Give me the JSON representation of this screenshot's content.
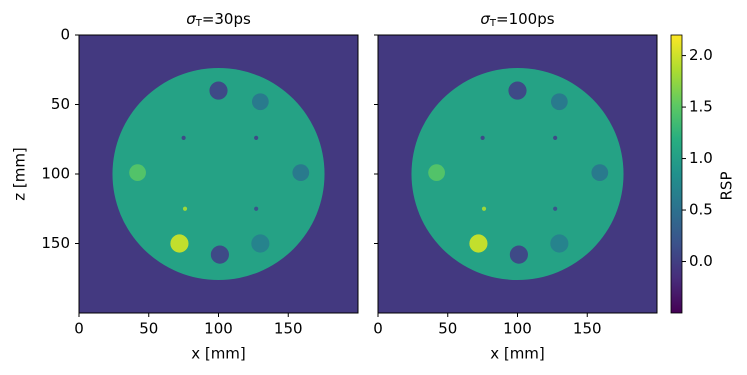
{
  "chart_data": [
    {
      "type": "image",
      "colormap": "viridis",
      "title": {
        "symbol": "σ",
        "subscript": "T",
        "text": "=30ps"
      },
      "xlabel": "x [mm]",
      "ylabel": "z [mm]",
      "xlim": [
        0,
        200
      ],
      "xticks": [
        0,
        50,
        100,
        150
      ],
      "ylim": [
        200,
        0
      ],
      "yticks": [
        0,
        50,
        100,
        150
      ],
      "show_yticklabels": true,
      "background": -0.05,
      "disk": {
        "x": 100,
        "z": 100,
        "r": 76,
        "value": 1.05
      },
      "inserts": {
        "x": [
          100,
          130,
          75,
          127,
          42,
          159,
          76,
          127,
          72,
          101,
          130
        ],
        "z": [
          40,
          48,
          74,
          74,
          99,
          99,
          125,
          125,
          150,
          158,
          150
        ],
        "r": [
          6.5,
          6,
          1.5,
          1.5,
          6,
          6,
          1.5,
          1.5,
          6.5,
          6.5,
          6.5
        ],
        "values": [
          0.1,
          0.6,
          0.1,
          0.1,
          1.45,
          0.6,
          1.8,
          0.2,
          1.95,
          0.1,
          0.7
        ]
      }
    },
    {
      "type": "image",
      "colormap": "viridis",
      "title": {
        "symbol": "σ",
        "subscript": "T",
        "text": "=100ps"
      },
      "xlabel": "x [mm]",
      "xlim": [
        0,
        200
      ],
      "xticks": [
        0,
        50,
        100,
        150
      ],
      "ylim": [
        200,
        0
      ],
      "yticks": [
        0,
        50,
        100,
        150
      ],
      "show_yticklabels": false,
      "background": -0.05,
      "disk": {
        "x": 100,
        "z": 100,
        "r": 76,
        "value": 1.05
      },
      "inserts": {
        "x": [
          100,
          130,
          75,
          127,
          42,
          159,
          76,
          127,
          72,
          101,
          130
        ],
        "z": [
          40,
          48,
          74,
          74,
          99,
          99,
          125,
          125,
          150,
          158,
          150
        ],
        "r": [
          6.5,
          6,
          1.5,
          1.5,
          6,
          6,
          1.5,
          1.5,
          6.5,
          6.5,
          6.5
        ],
        "values": [
          0.1,
          0.6,
          0.1,
          0.1,
          1.45,
          0.6,
          1.8,
          0.2,
          1.95,
          0.1,
          0.7
        ]
      },
      "colorbar": {
        "label": "RSP",
        "lim": [
          -0.5,
          2.2
        ],
        "ticks": [
          {
            "value": 0,
            "label": "0.0"
          },
          0.5,
          {
            "value": 1,
            "label": "1.0"
          },
          1.5,
          {
            "value": 2,
            "label": "2.0"
          }
        ]
      }
    }
  ]
}
